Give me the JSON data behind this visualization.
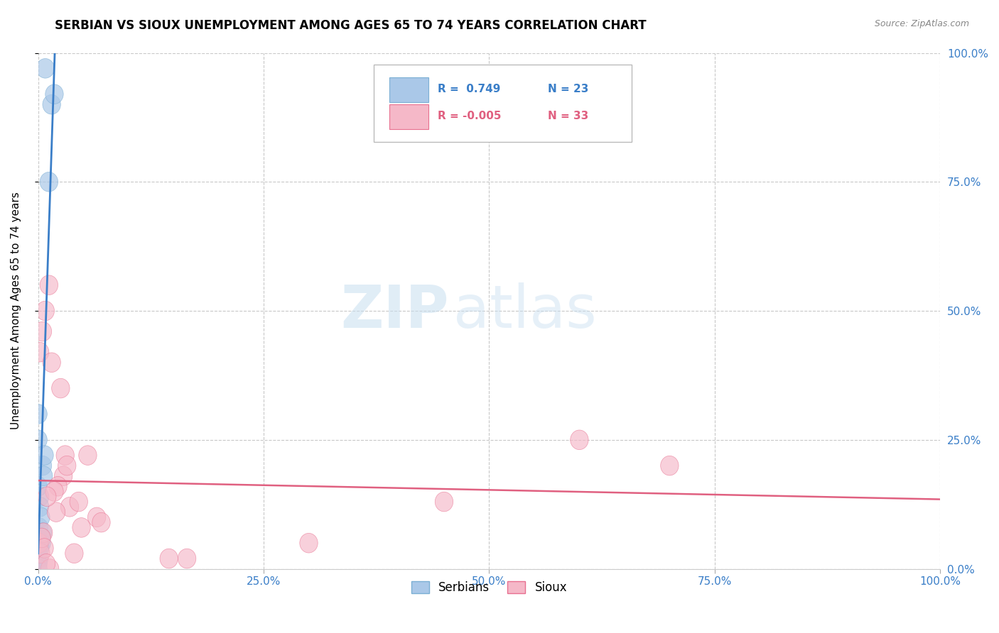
{
  "title": "SERBIAN VS SIOUX UNEMPLOYMENT AMONG AGES 65 TO 74 YEARS CORRELATION CHART",
  "source": "Source: ZipAtlas.com",
  "ylabel": "Unemployment Among Ages 65 to 74 years",
  "serbian_color": "#aac8e8",
  "serbian_edge": "#7bafd4",
  "sioux_color": "#f5b8c8",
  "sioux_edge": "#e87090",
  "trend_serbian": "#3a7ec8",
  "trend_sioux": "#e06080",
  "serbian_R": 0.749,
  "serbian_N": 23,
  "sioux_R": -0.005,
  "sioux_N": 33,
  "serbian_x": [
    0.8,
    1.5,
    0.0,
    0.5,
    0.2,
    0.0,
    0.0,
    0.1,
    0.0,
    0.0,
    0.2,
    0.3,
    1.8,
    0.7,
    0.4,
    0.5,
    0.1,
    0.3,
    0.0,
    0.6,
    0.2,
    0.0,
    1.2
  ],
  "serbian_y": [
    97,
    90,
    30,
    20,
    14,
    16,
    25,
    8,
    5,
    3,
    12,
    10,
    92,
    22,
    5,
    7,
    2,
    6,
    1,
    18,
    4,
    0,
    75
  ],
  "sioux_x": [
    0.5,
    1.2,
    0.2,
    2.8,
    3.5,
    0.8,
    1.5,
    4.5,
    2.2,
    6.5,
    0.1,
    3.0,
    4.8,
    1.8,
    0.3,
    2.0,
    0.6,
    3.2,
    1.0,
    7.0,
    0.4,
    14.5,
    16.5,
    5.5,
    0.7,
    2.5,
    60.0,
    70.0,
    1.3,
    0.9,
    4.0,
    45.0,
    30.0
  ],
  "sioux_y": [
    46,
    55,
    42,
    18,
    12,
    50,
    40,
    13,
    16,
    10,
    5,
    22,
    8,
    15,
    3,
    11,
    7,
    20,
    14,
    9,
    6,
    2,
    2,
    22,
    4,
    35,
    25,
    20,
    0,
    1,
    3,
    13,
    5
  ],
  "watermark_zip": "ZIP",
  "watermark_atlas": "atlas",
  "xlim": [
    0,
    100
  ],
  "ylim": [
    0,
    100
  ],
  "xticks": [
    0,
    25,
    50,
    75,
    100
  ],
  "yticks": [
    0,
    25,
    50,
    75,
    100
  ],
  "xticklabels": [
    "0.0%",
    "25.0%",
    "50.0%",
    "75.0%",
    "100.0%"
  ],
  "yticklabels_right": [
    "100.0%",
    "75.0%",
    "50.0%",
    "25.0%",
    "0.0%"
  ],
  "legend_serbian_text": "R =  0.749   N = 23",
  "legend_sioux_text": "R = -0.005   N = 33",
  "bottom_legend_serbians": "Serbians",
  "bottom_legend_sioux": "Sioux"
}
